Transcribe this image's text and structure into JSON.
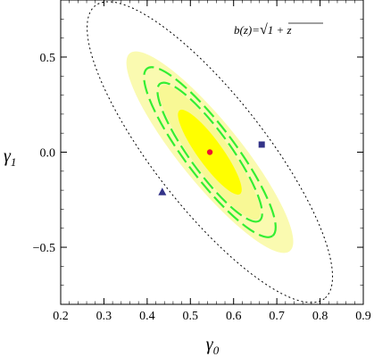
{
  "chart_data": {
    "type": "contour",
    "xlabel": "γ0",
    "ylabel": "γ1",
    "xlim": [
      0.2,
      0.9
    ],
    "ylim": [
      -0.8,
      0.8
    ],
    "xticks": [
      0.2,
      0.3,
      0.4,
      0.5,
      0.6,
      0.7,
      0.8,
      0.9
    ],
    "yticks": [
      -0.5,
      0.0,
      0.5
    ],
    "xtick_labels": [
      "0.2",
      "0.3",
      "0.4",
      "0.5",
      "0.6",
      "0.7",
      "0.8",
      "0.9"
    ],
    "ytick_labels": [
      "−0.5",
      "0.0",
      "0.5"
    ],
    "annotation": "b(z)=√(1 + z)",
    "annotation_parts": {
      "lhs": "b(z)=",
      "radical": "√",
      "radicand": "1 + z"
    },
    "grid": false,
    "confidence_regions": [
      {
        "center": [
          0.545,
          0.0
        ],
        "x_extent": [
          0.48,
          0.62
        ],
        "y_extent": [
          -0.22,
          0.22
        ],
        "style": "filled",
        "color": "#ffff00"
      },
      {
        "center": [
          0.545,
          0.0
        ],
        "x_extent": [
          0.43,
          0.66
        ],
        "y_extent": [
          -0.36,
          0.36
        ],
        "style": "dashed",
        "color": "#33ee33"
      },
      {
        "center": [
          0.545,
          0.0
        ],
        "x_extent": [
          0.4,
          0.69
        ],
        "y_extent": [
          -0.44,
          0.44
        ],
        "style": "dashed",
        "color": "#33ee33"
      },
      {
        "center": [
          0.545,
          0.0
        ],
        "x_extent": [
          0.36,
          0.73
        ],
        "y_extent": [
          -0.52,
          0.52
        ],
        "style": "filled",
        "color": "#fafab0"
      },
      {
        "center": [
          0.545,
          0.0
        ],
        "x_extent": [
          0.27,
          0.8
        ],
        "y_extent": [
          -0.77,
          0.77
        ],
        "style": "dotted",
        "color": "#000000"
      }
    ],
    "markers": [
      {
        "shape": "circle",
        "x": 0.545,
        "y": 0.0,
        "color": "#ee1133"
      },
      {
        "shape": "square",
        "x": 0.665,
        "y": 0.04,
        "color": "#333388"
      },
      {
        "shape": "triangle",
        "x": 0.435,
        "y": -0.21,
        "color": "#333388"
      }
    ]
  }
}
